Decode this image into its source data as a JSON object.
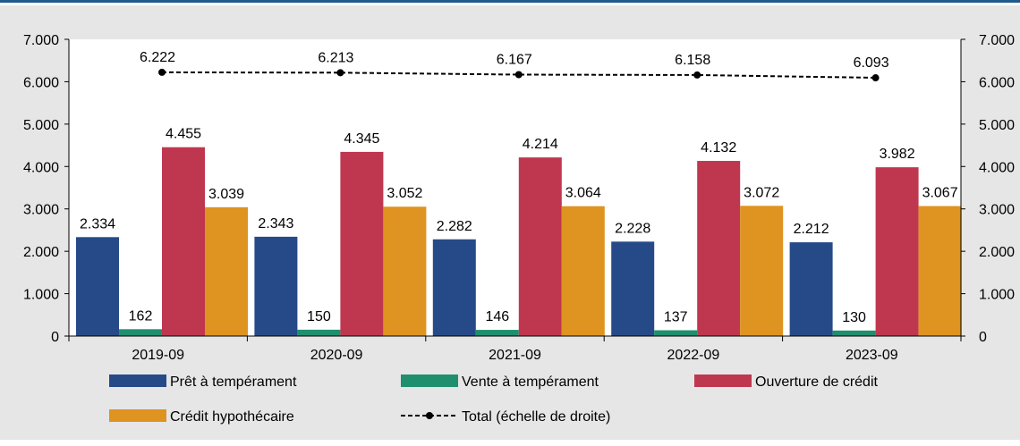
{
  "chart_data": {
    "type": "bar",
    "categories": [
      "2019-09",
      "2020-09",
      "2021-09",
      "2022-09",
      "2023-09"
    ],
    "series": [
      {
        "name": "Prêt à tempérament",
        "values": [
          2334,
          2343,
          2282,
          2228,
          2212
        ],
        "color": "#264a88"
      },
      {
        "name": "Vente à tempérament",
        "values": [
          162,
          150,
          146,
          137,
          130
        ],
        "color": "#1f8f6e"
      },
      {
        "name": "Ouverture de crédit",
        "values": [
          4455,
          4345,
          4214,
          4132,
          3982
        ],
        "color": "#bf374f"
      },
      {
        "name": "Crédit hypothécaire",
        "values": [
          3039,
          3052,
          3064,
          3072,
          3067
        ],
        "color": "#df9320"
      }
    ],
    "line_series": {
      "name": "Total (échelle de droite)",
      "values": [
        6222,
        6213,
        6167,
        6158,
        6093
      ],
      "color": "#000000",
      "style": "dashed"
    },
    "bar_labels": [
      [
        "2.334",
        "2.343",
        "2.282",
        "2.228",
        "2.212"
      ],
      [
        "162",
        "150",
        "146",
        "137",
        "130"
      ],
      [
        "4.455",
        "4.345",
        "4.214",
        "4.132",
        "3.982"
      ],
      [
        "3.039",
        "3.052",
        "3.064",
        "3.072",
        "3.067"
      ]
    ],
    "line_labels": [
      "6.222",
      "6.213",
      "6.167",
      "6.158",
      "6.093"
    ],
    "ylim": [
      0,
      7000
    ],
    "y2lim": [
      0,
      7000
    ],
    "yticks": [
      0,
      1000,
      2000,
      3000,
      4000,
      5000,
      6000,
      7000
    ],
    "ytick_labels": [
      "0",
      "1.000",
      "2.000",
      "3.000",
      "4.000",
      "5.000",
      "6.000",
      "7.000"
    ],
    "legend_position": "bottom",
    "grid": false
  }
}
